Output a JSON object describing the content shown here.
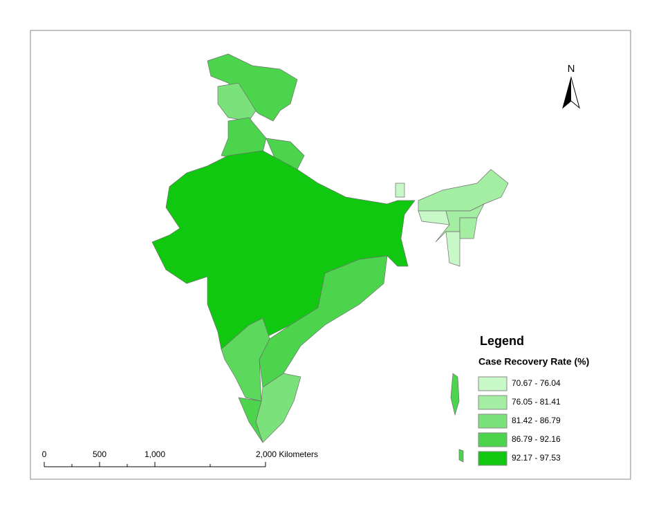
{
  "north_arrow": "N",
  "scale_bar": {
    "labels": [
      "0",
      "500",
      "1,000",
      "2,000 Kilometers"
    ]
  },
  "legend": {
    "title": "Legend",
    "subtitle": "Case Recovery Rate (%)",
    "classes": [
      {
        "label": "70.67 - 76.04",
        "color": "#c8f7c8"
      },
      {
        "label": "76.05 - 81.41",
        "color": "#a4eea4"
      },
      {
        "label": "81.42 - 86.79",
        "color": "#7be27b"
      },
      {
        "label": "86.79 - 92.16",
        "color": "#4dd44d"
      },
      {
        "label": "92.17 - 97.53",
        "color": "#10c810"
      }
    ]
  }
}
